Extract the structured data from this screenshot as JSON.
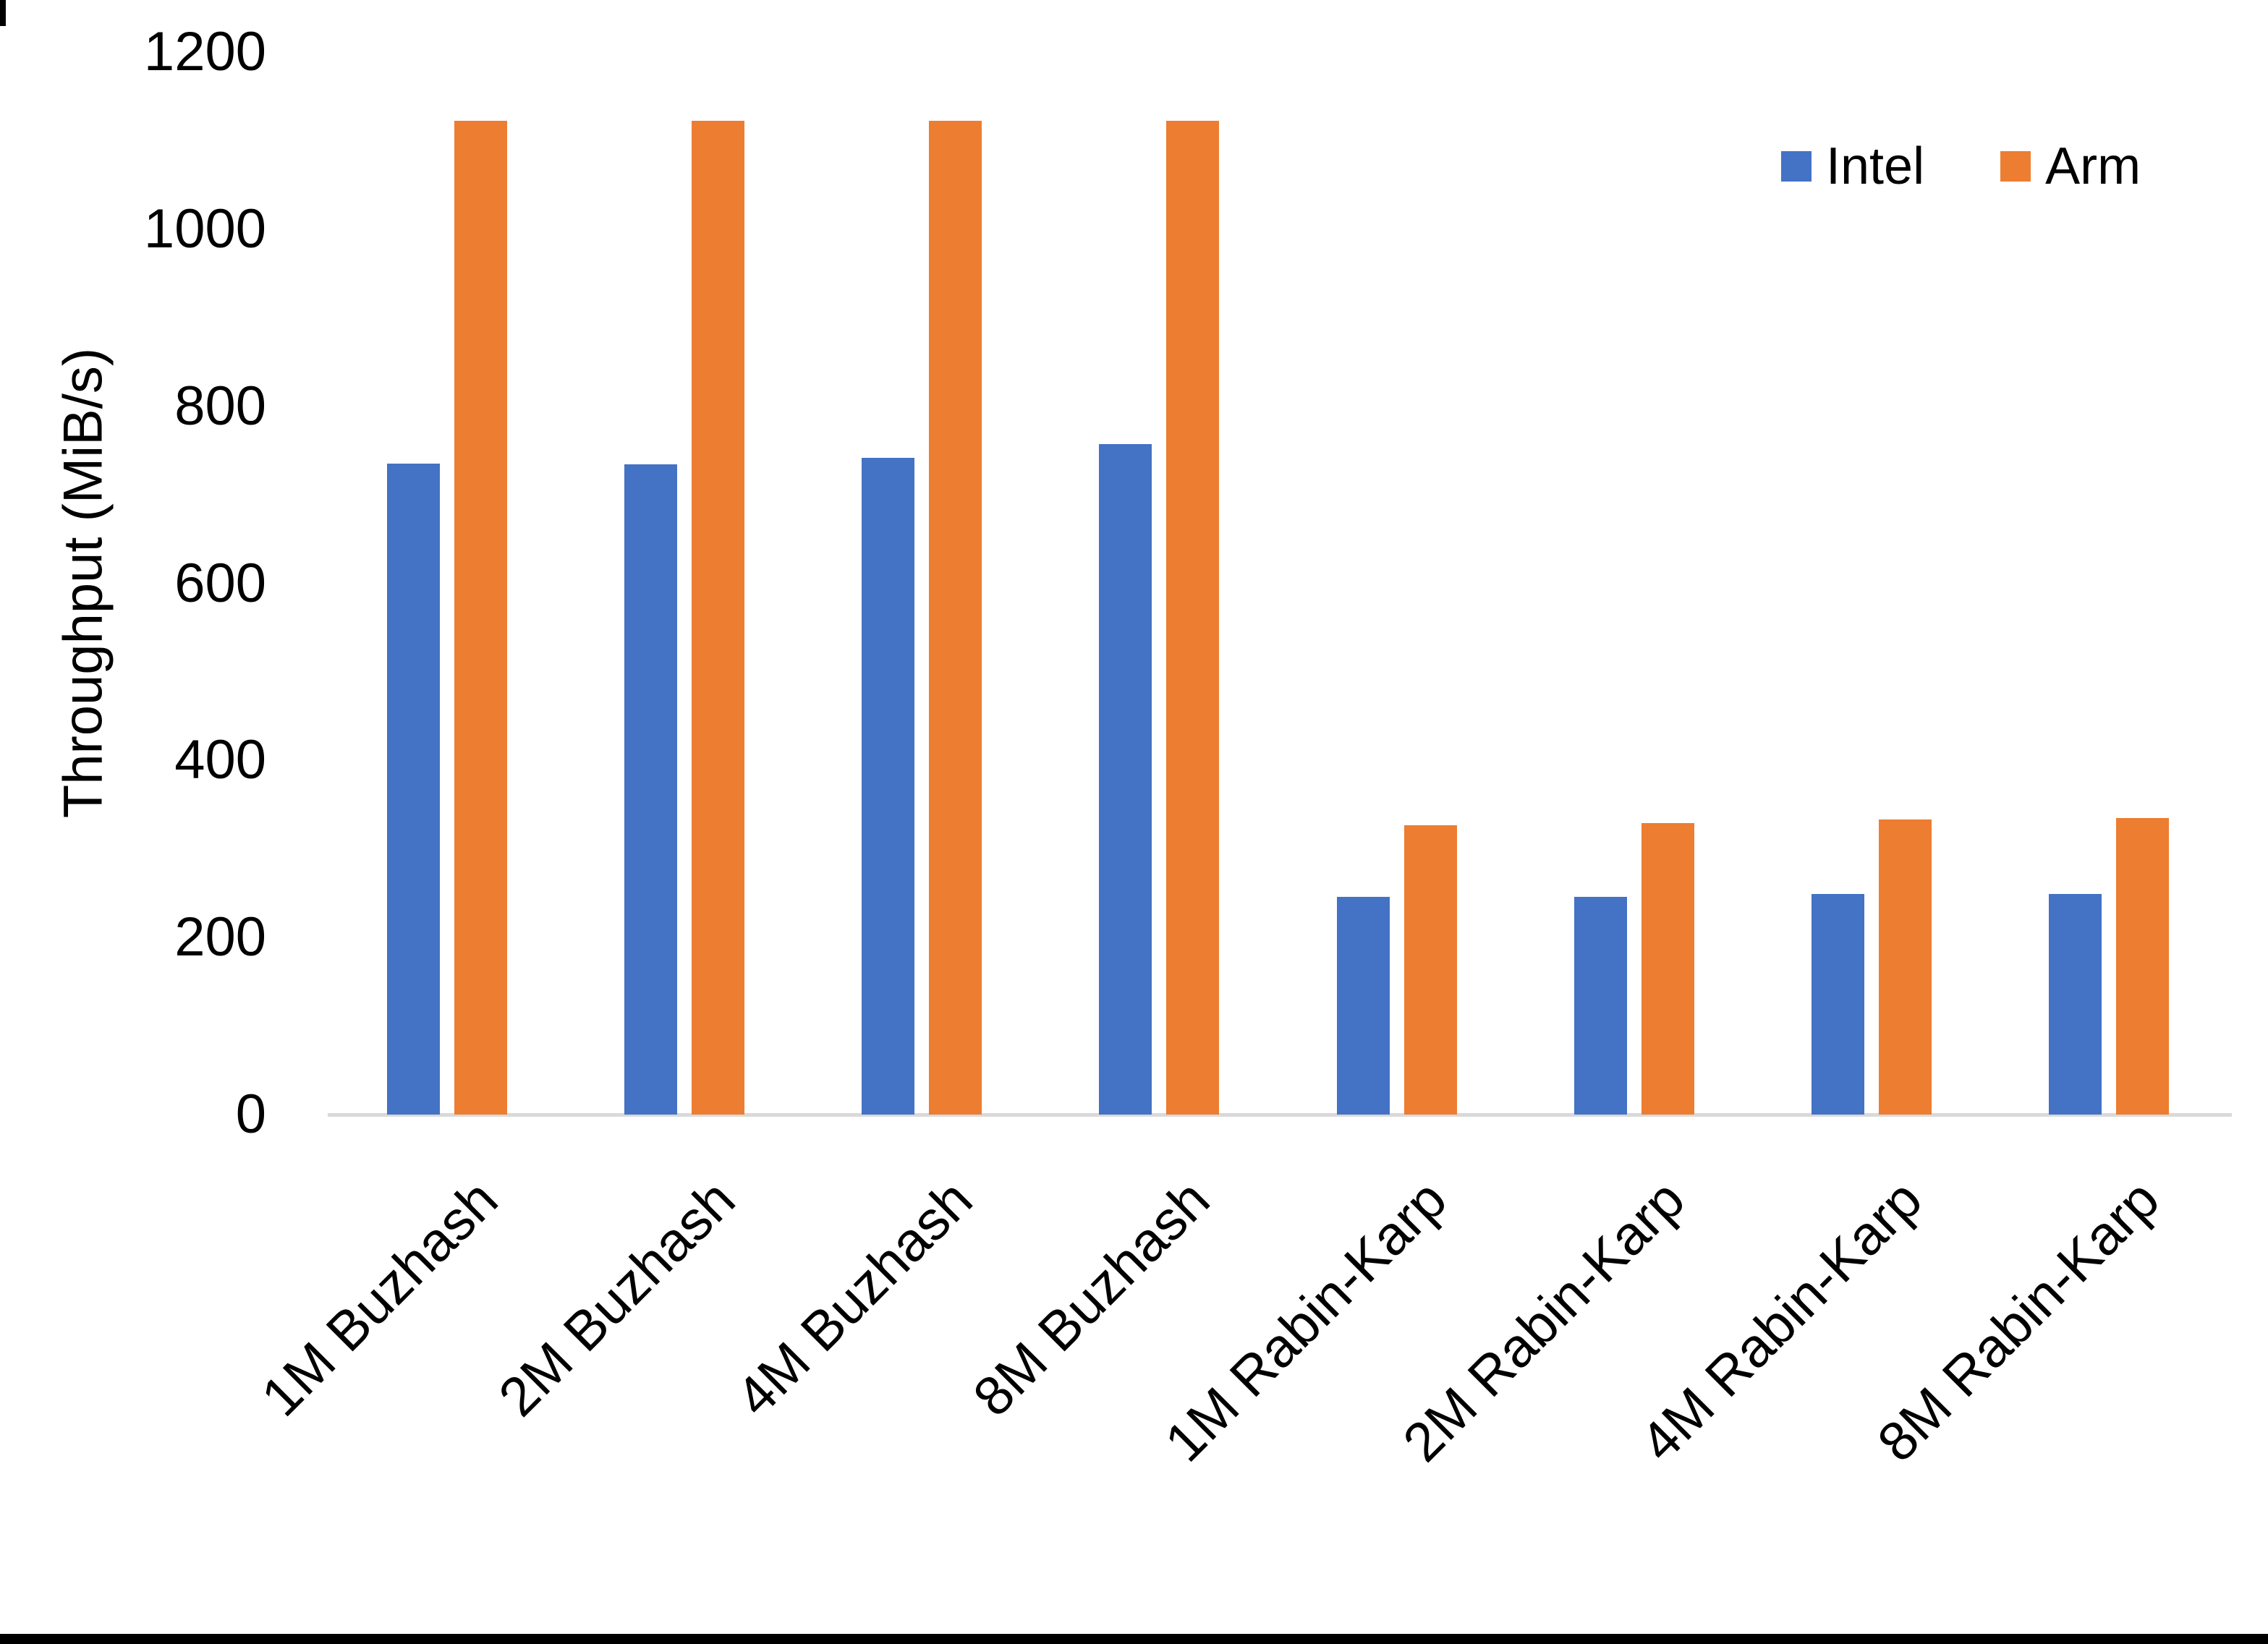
{
  "chart_data": {
    "type": "bar",
    "title": "",
    "xlabel": "",
    "ylabel": "Throughput (MiB/s)",
    "categories": [
      "1M Buzhash",
      "2M Buzhash",
      "4M Buzhash",
      "8M Buzhash",
      "1M Rabin-Karp",
      "2M Rabin-Karp",
      "4M Rabin-Karp",
      "8M Rabin-Karp"
    ],
    "series": [
      {
        "name": "Intel",
        "color": "#4472C4",
        "values": [
          735,
          734,
          742,
          757,
          246,
          246,
          249,
          249
        ]
      },
      {
        "name": "Arm",
        "color": "#ED7D31",
        "values": [
          1122,
          1122,
          1122,
          1122,
          327,
          329,
          333,
          335
        ]
      }
    ],
    "y_ticks": [
      0,
      200,
      400,
      600,
      800,
      1000,
      1200
    ],
    "ylim": [
      0,
      1200
    ],
    "grid": false,
    "legend_position": "top-right",
    "axis_line_color": "#D9D9D9",
    "text_color": "#000000",
    "background_color": "#FFFFFF"
  }
}
